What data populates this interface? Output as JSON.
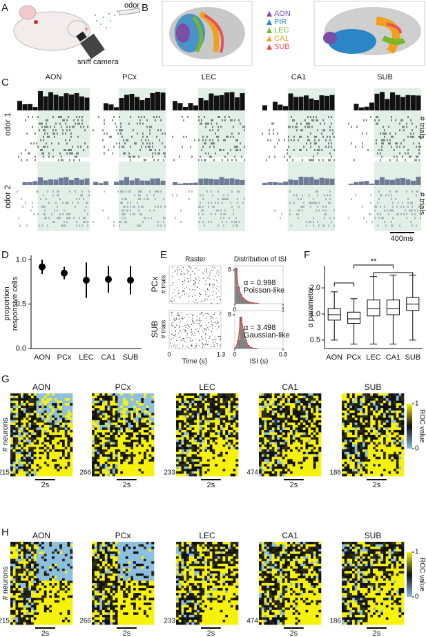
{
  "panel_labels": [
    "A",
    "B",
    "C",
    "D",
    "E",
    "F",
    "G",
    "H"
  ],
  "panel_a": {
    "odor": "odor",
    "camera": "sniff camera"
  },
  "panel_b": {
    "legend": [
      {
        "name": "AON",
        "color": "#7b4fa6"
      },
      {
        "name": "PIR",
        "color": "#2a86c7"
      },
      {
        "name": "LEC",
        "color": "#76b82a"
      },
      {
        "name": "CA1",
        "color": "#f0a020"
      },
      {
        "name": "SUB",
        "color": "#e8505b"
      }
    ]
  },
  "panel_c": {
    "regions": [
      "AON",
      "PCx",
      "LEC",
      "CA1",
      "SUB"
    ],
    "rows": [
      "odor 1",
      "odor 2"
    ],
    "y_label": "# trials",
    "scale_bar": "400ms"
  },
  "panel_e": {
    "title_raster": "Raster",
    "title_isi": "Distribution of ISI",
    "regions": [
      "PCx",
      "SUB"
    ],
    "y_label": "# trials",
    "raster_x_label": "Time (s)",
    "raster_xticks": [
      "0",
      "1.3"
    ]
  },
  "panel_g": {
    "regions": [
      "AON",
      "PCx",
      "LEC",
      "CA1",
      "SUB"
    ],
    "y_label": "# neurons",
    "counts": [
      "215",
      "266",
      "233",
      "474",
      "186"
    ],
    "scale_bar": "2s",
    "colorbar": {
      "label": "ROC value",
      "clim": [
        0,
        1
      ],
      "ticks": [
        0,
        1
      ]
    }
  },
  "panel_h": {
    "regions": [
      "AON",
      "PCx",
      "LEC",
      "CA1",
      "SUB"
    ],
    "y_label": "# neurons",
    "counts": [
      "215",
      "266",
      "233",
      "474",
      "186"
    ],
    "scale_bar": "2s",
    "colorbar": {
      "label": "ROC value",
      "clim": [
        0,
        1
      ],
      "ticks": [
        0,
        1
      ]
    }
  },
  "chart_data": [
    {
      "type": "errorbar",
      "ylabel_lines": [
        "proportion",
        "responsive cells"
      ],
      "categories": [
        "AON",
        "PCx",
        "LEC",
        "CA1",
        "SUB"
      ],
      "values": [
        0.92,
        0.85,
        0.77,
        0.78,
        0.77
      ],
      "errors": [
        0.08,
        0.07,
        0.2,
        0.15,
        0.16
      ],
      "color": "#000000",
      "ylim": [
        0,
        1.05
      ],
      "yticks": [
        {
          "value": 0,
          "label": "0.0"
        },
        0.5,
        {
          "value": 1,
          "label": "1.0"
        }
      ]
    },
    {
      "type": "box",
      "ylabel": "α parameter",
      "log_y": true,
      "categories": [
        "AON",
        "PCx",
        "LEC",
        "CA1",
        "SUB"
      ],
      "boxes": [
        {
          "whislo": 0.5,
          "q1": 0.85,
          "med": 0.98,
          "q3": 1.15,
          "whishi": 1.8
        },
        {
          "whislo": 0.45,
          "q1": 0.78,
          "med": 0.88,
          "q3": 1.05,
          "whishi": 1.5
        },
        {
          "whislo": 0.45,
          "q1": 0.95,
          "med": 1.15,
          "q3": 1.45,
          "whishi": 2.7
        },
        {
          "whislo": 0.45,
          "q1": 0.98,
          "med": 1.15,
          "q3": 1.45,
          "whishi": 2.8
        },
        {
          "whislo": 0.5,
          "q1": 1.1,
          "med": 1.3,
          "q3": 1.55,
          "whishi": 2.8
        }
      ],
      "ylim": [
        0.4,
        3.6
      ],
      "yticks": [
        0.5,
        {
          "value": 1,
          "label": "1.0"
        },
        {
          "value": 2,
          "label": "2.0"
        }
      ],
      "annotation": "**"
    },
    {
      "type": "histogram",
      "annotations": [
        "α = 0.998",
        "Poisson-like"
      ],
      "bins": [
        0,
        0.05,
        0.1,
        0.15,
        0.2,
        0.25,
        0.3,
        0.35,
        0.4,
        0.45,
        0.5
      ],
      "values": [
        8.5,
        4,
        2.2,
        1.3,
        0.8,
        0.5,
        0.3,
        0.2,
        0.1,
        0.1
      ],
      "color": "#8a8a8a",
      "xlim": [
        0,
        1
      ],
      "xticks": [
        0,
        1
      ],
      "ylim": [
        0,
        9
      ],
      "yticks": [
        8
      ]
    },
    {
      "type": "histogram",
      "annotations": [
        "α = 3.498",
        "Gaussian-like"
      ],
      "xlabel": "ISI (s)",
      "bins": [
        0,
        0.04,
        0.08,
        0.12,
        0.16,
        0.2,
        0.24,
        0.28,
        0.32,
        0.36,
        0.4
      ],
      "values": [
        0.3,
        2,
        7.5,
        4.5,
        2,
        0.8,
        0.3,
        0.1,
        0.05,
        0
      ],
      "color": "#8a8a8a",
      "xlim": [
        0,
        0.8
      ],
      "xticks": [
        0,
        0.8
      ],
      "ylim": [
        0,
        9
      ],
      "yticks": [
        8
      ]
    }
  ]
}
